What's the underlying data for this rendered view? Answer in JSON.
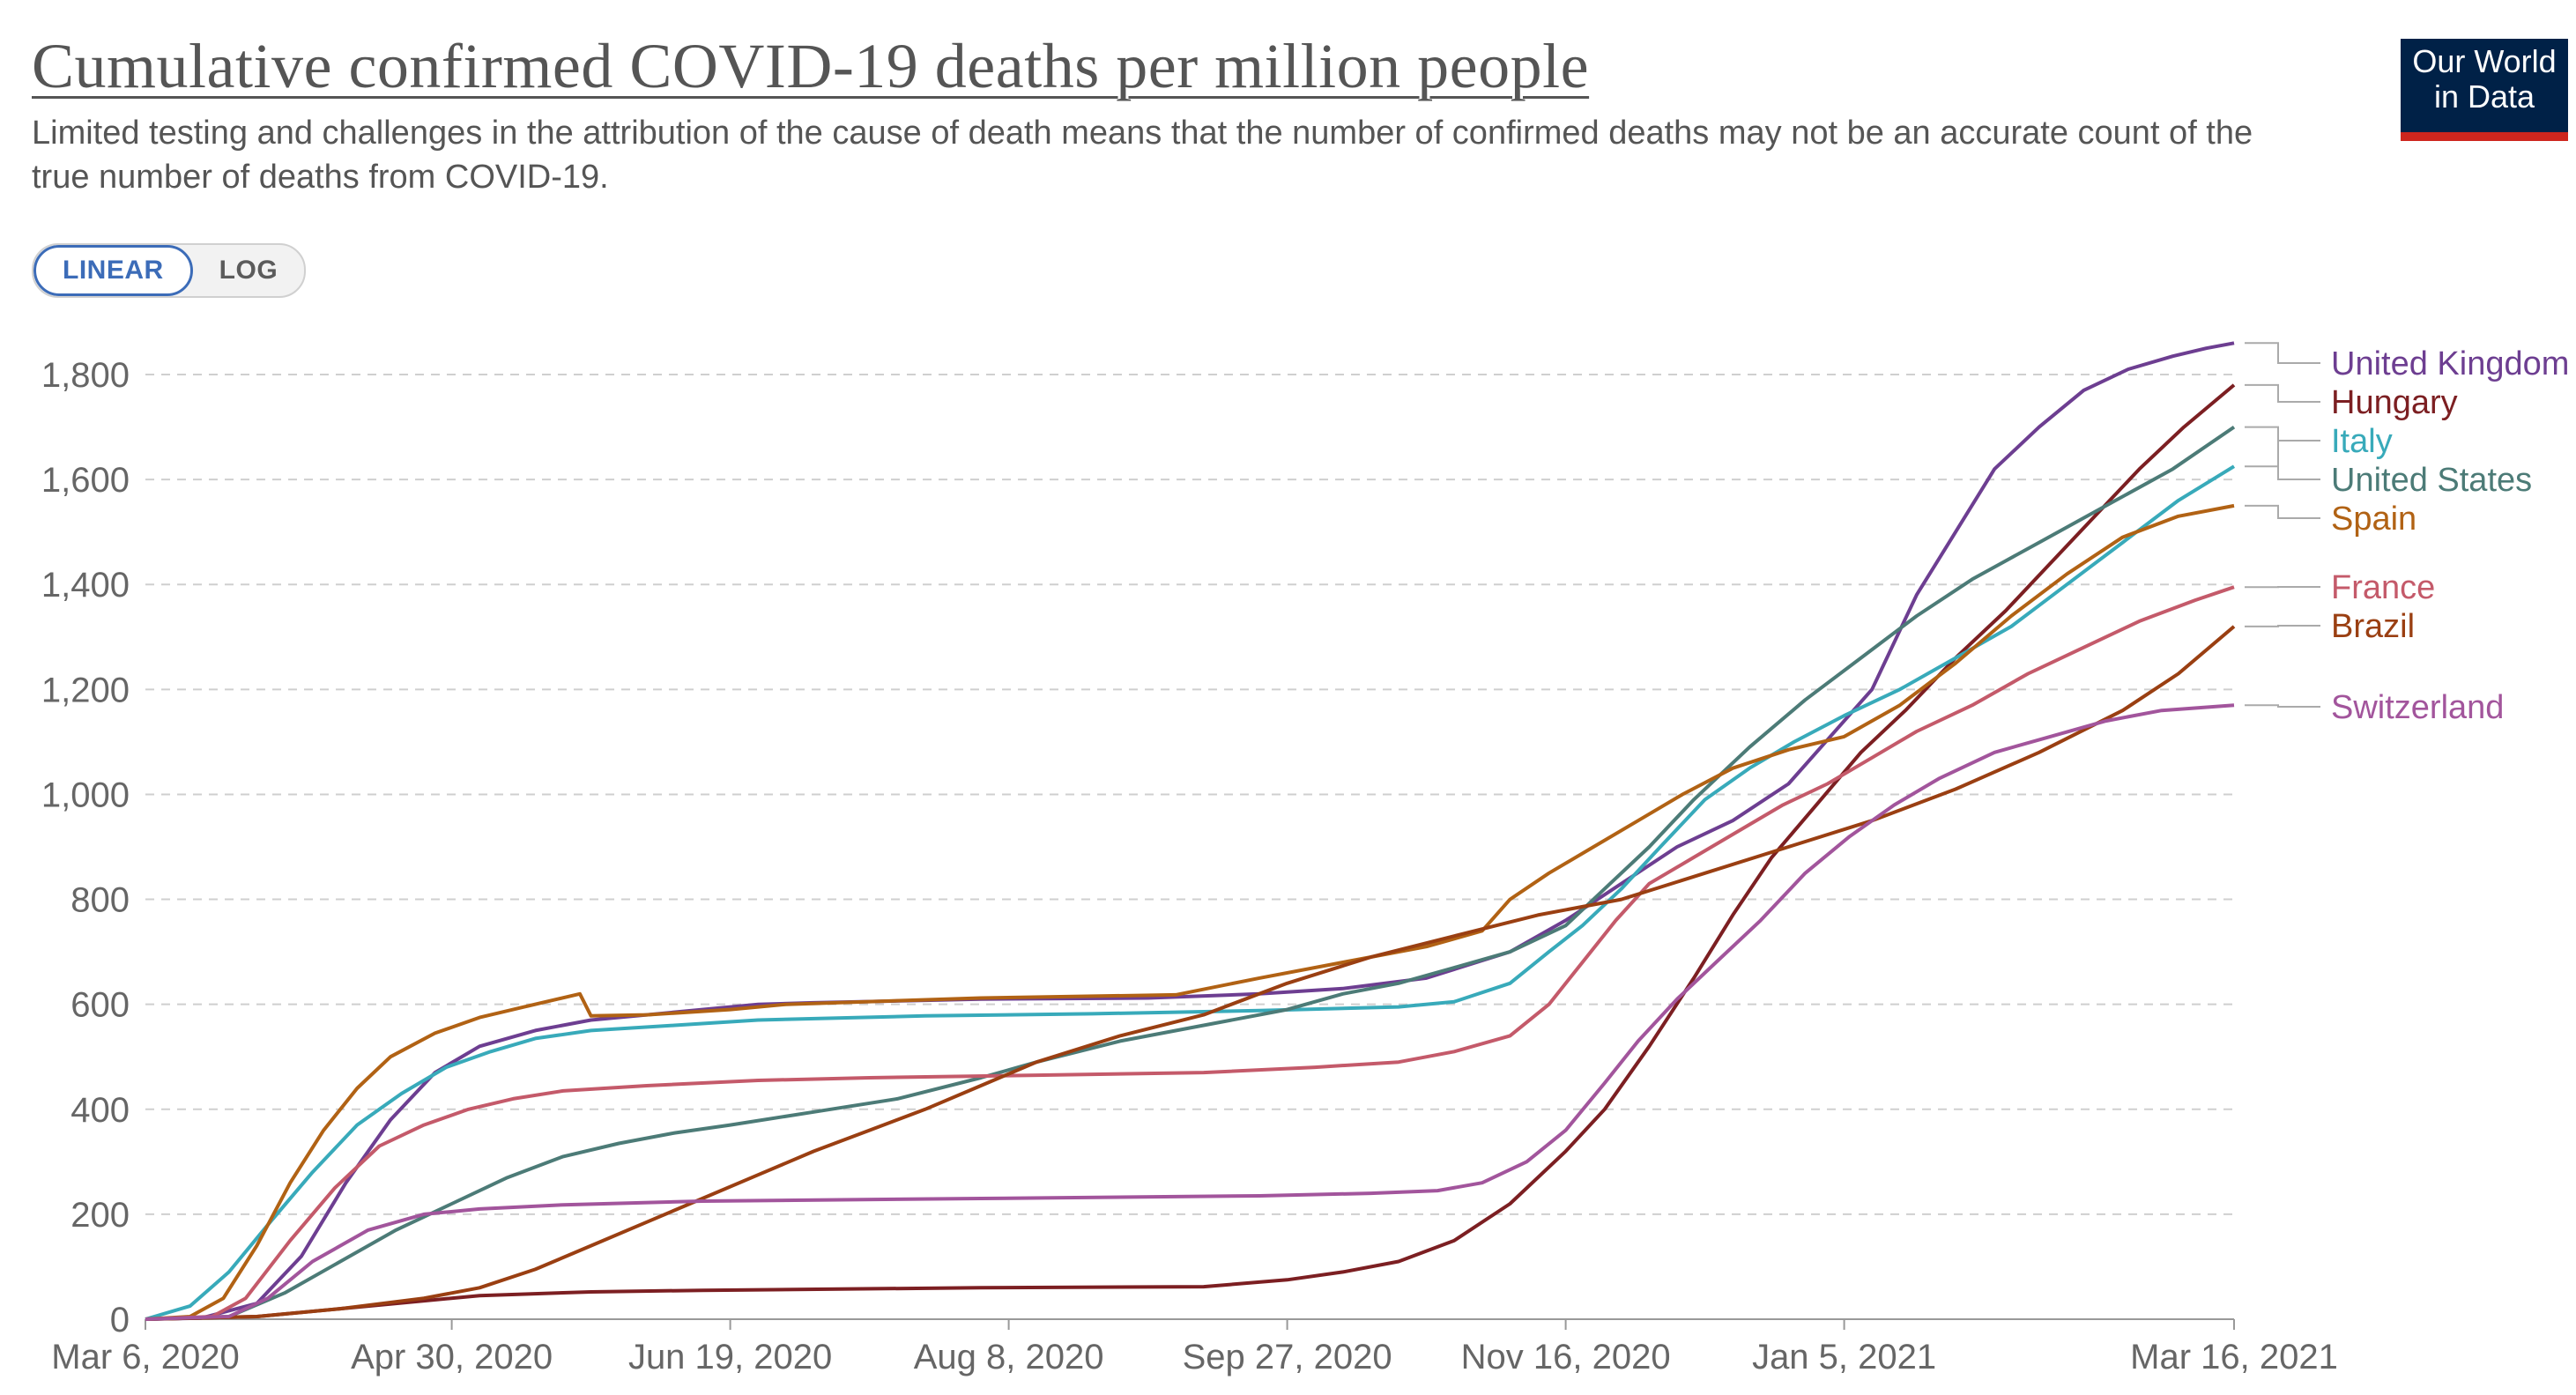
{
  "header": {
    "title": "Cumulative confirmed COVID-19 deaths per million people",
    "subtitle": "Limited testing and challenges in the attribution of the cause of death means that the number of confirmed deaths may not be an accurate count of the true number of deaths from COVID-19."
  },
  "logo": {
    "line1": "Our World",
    "line2": "in Data"
  },
  "scale_toggle": {
    "linear_label": "LINEAR",
    "log_label": "LOG",
    "selected": "LINEAR"
  },
  "chart_data": {
    "type": "line",
    "title": "Cumulative confirmed COVID-19 deaths per million people",
    "xlabel": "",
    "ylabel": "",
    "ylim": [
      0,
      1800
    ],
    "y_ticks": [
      0,
      200,
      400,
      600,
      800,
      1000,
      1200,
      1400,
      1600,
      1800
    ],
    "y_tick_labels": [
      "0",
      "200",
      "400",
      "600",
      "800",
      "1,000",
      "1,200",
      "1,400",
      "1,600",
      "1,800"
    ],
    "x_range_days": [
      0,
      375
    ],
    "x_ticks": [
      {
        "day": 0,
        "label": "Mar 6, 2020"
      },
      {
        "day": 55,
        "label": "Apr 30, 2020"
      },
      {
        "day": 105,
        "label": "Jun 19, 2020"
      },
      {
        "day": 155,
        "label": "Aug 8, 2020"
      },
      {
        "day": 205,
        "label": "Sep 27, 2020"
      },
      {
        "day": 255,
        "label": "Nov 16, 2020"
      },
      {
        "day": 305,
        "label": "Jan 5, 2021"
      },
      {
        "day": 375,
        "label": "Mar 16, 2021"
      }
    ],
    "grid": true,
    "legend": "right end labels",
    "series": [
      {
        "name": "United Kingdom",
        "color": "#6d3e91",
        "points": [
          [
            0,
            0
          ],
          [
            10,
            2
          ],
          [
            20,
            30
          ],
          [
            28,
            120
          ],
          [
            36,
            260
          ],
          [
            44,
            380
          ],
          [
            52,
            470
          ],
          [
            60,
            520
          ],
          [
            70,
            550
          ],
          [
            80,
            570
          ],
          [
            90,
            580
          ],
          [
            100,
            590
          ],
          [
            110,
            600
          ],
          [
            120,
            603
          ],
          [
            150,
            610
          ],
          [
            180,
            612
          ],
          [
            200,
            620
          ],
          [
            215,
            630
          ],
          [
            230,
            650
          ],
          [
            245,
            700
          ],
          [
            255,
            760
          ],
          [
            265,
            830
          ],
          [
            275,
            900
          ],
          [
            285,
            950
          ],
          [
            295,
            1020
          ],
          [
            300,
            1080
          ],
          [
            310,
            1200
          ],
          [
            318,
            1380
          ],
          [
            325,
            1500
          ],
          [
            332,
            1620
          ],
          [
            340,
            1700
          ],
          [
            348,
            1770
          ],
          [
            356,
            1810
          ],
          [
            364,
            1835
          ],
          [
            370,
            1850
          ],
          [
            375,
            1860
          ]
        ]
      },
      {
        "name": "Hungary",
        "color": "#7c1f22",
        "points": [
          [
            0,
            0
          ],
          [
            20,
            5
          ],
          [
            40,
            25
          ],
          [
            60,
            45
          ],
          [
            80,
            52
          ],
          [
            100,
            55
          ],
          [
            150,
            60
          ],
          [
            190,
            62
          ],
          [
            205,
            75
          ],
          [
            215,
            90
          ],
          [
            225,
            110
          ],
          [
            235,
            150
          ],
          [
            245,
            220
          ],
          [
            255,
            320
          ],
          [
            262,
            400
          ],
          [
            270,
            520
          ],
          [
            278,
            650
          ],
          [
            285,
            770
          ],
          [
            292,
            880
          ],
          [
            300,
            980
          ],
          [
            308,
            1080
          ],
          [
            316,
            1160
          ],
          [
            325,
            1260
          ],
          [
            334,
            1350
          ],
          [
            342,
            1440
          ],
          [
            350,
            1530
          ],
          [
            358,
            1620
          ],
          [
            366,
            1700
          ],
          [
            375,
            1780
          ]
        ]
      },
      {
        "name": "Italy",
        "color": "#38aaba",
        "points": [
          [
            0,
            0
          ],
          [
            8,
            25
          ],
          [
            15,
            90
          ],
          [
            22,
            180
          ],
          [
            30,
            280
          ],
          [
            38,
            370
          ],
          [
            46,
            430
          ],
          [
            54,
            480
          ],
          [
            62,
            510
          ],
          [
            70,
            535
          ],
          [
            80,
            550
          ],
          [
            95,
            560
          ],
          [
            110,
            570
          ],
          [
            140,
            578
          ],
          [
            170,
            582
          ],
          [
            200,
            588
          ],
          [
            225,
            595
          ],
          [
            235,
            605
          ],
          [
            245,
            640
          ],
          [
            252,
            700
          ],
          [
            258,
            750
          ],
          [
            265,
            820
          ],
          [
            272,
            900
          ],
          [
            280,
            990
          ],
          [
            288,
            1050
          ],
          [
            296,
            1100
          ],
          [
            305,
            1150
          ],
          [
            315,
            1200
          ],
          [
            325,
            1260
          ],
          [
            335,
            1320
          ],
          [
            345,
            1400
          ],
          [
            355,
            1480
          ],
          [
            365,
            1560
          ],
          [
            375,
            1625
          ]
        ]
      },
      {
        "name": "United States",
        "color": "#4c7b77",
        "points": [
          [
            0,
            0
          ],
          [
            15,
            5
          ],
          [
            25,
            50
          ],
          [
            35,
            110
          ],
          [
            45,
            170
          ],
          [
            55,
            220
          ],
          [
            65,
            270
          ],
          [
            75,
            310
          ],
          [
            85,
            335
          ],
          [
            95,
            355
          ],
          [
            105,
            370
          ],
          [
            120,
            395
          ],
          [
            135,
            420
          ],
          [
            150,
            460
          ],
          [
            160,
            490
          ],
          [
            175,
            530
          ],
          [
            190,
            560
          ],
          [
            205,
            590
          ],
          [
            215,
            620
          ],
          [
            225,
            640
          ],
          [
            235,
            670
          ],
          [
            245,
            700
          ],
          [
            255,
            750
          ],
          [
            262,
            820
          ],
          [
            270,
            900
          ],
          [
            278,
            990
          ],
          [
            288,
            1090
          ],
          [
            298,
            1180
          ],
          [
            308,
            1260
          ],
          [
            318,
            1340
          ],
          [
            328,
            1410
          ],
          [
            340,
            1480
          ],
          [
            352,
            1550
          ],
          [
            364,
            1620
          ],
          [
            375,
            1700
          ]
        ]
      },
      {
        "name": "Spain",
        "color": "#b16214",
        "points": [
          [
            0,
            0
          ],
          [
            8,
            5
          ],
          [
            14,
            40
          ],
          [
            20,
            140
          ],
          [
            26,
            260
          ],
          [
            32,
            360
          ],
          [
            38,
            440
          ],
          [
            44,
            500
          ],
          [
            52,
            545
          ],
          [
            60,
            575
          ],
          [
            68,
            595
          ],
          [
            74,
            610
          ],
          [
            78,
            620
          ],
          [
            80,
            578
          ],
          [
            90,
            580
          ],
          [
            105,
            590
          ],
          [
            115,
            600
          ],
          [
            150,
            612
          ],
          [
            185,
            618
          ],
          [
            200,
            650
          ],
          [
            215,
            680
          ],
          [
            230,
            710
          ],
          [
            240,
            740
          ],
          [
            245,
            800
          ],
          [
            252,
            850
          ],
          [
            260,
            900
          ],
          [
            268,
            950
          ],
          [
            276,
            1000
          ],
          [
            285,
            1050
          ],
          [
            295,
            1085
          ],
          [
            305,
            1110
          ],
          [
            315,
            1170
          ],
          [
            325,
            1250
          ],
          [
            335,
            1340
          ],
          [
            345,
            1420
          ],
          [
            355,
            1490
          ],
          [
            365,
            1530
          ],
          [
            375,
            1550
          ]
        ]
      },
      {
        "name": "France",
        "color": "#c45a6a",
        "points": [
          [
            0,
            0
          ],
          [
            12,
            5
          ],
          [
            18,
            40
          ],
          [
            26,
            150
          ],
          [
            34,
            250
          ],
          [
            42,
            330
          ],
          [
            50,
            370
          ],
          [
            58,
            400
          ],
          [
            66,
            420
          ],
          [
            75,
            435
          ],
          [
            90,
            445
          ],
          [
            110,
            455
          ],
          [
            130,
            460
          ],
          [
            160,
            465
          ],
          [
            190,
            470
          ],
          [
            210,
            480
          ],
          [
            225,
            490
          ],
          [
            235,
            510
          ],
          [
            245,
            540
          ],
          [
            252,
            600
          ],
          [
            258,
            680
          ],
          [
            264,
            760
          ],
          [
            270,
            830
          ],
          [
            278,
            880
          ],
          [
            286,
            930
          ],
          [
            294,
            980
          ],
          [
            302,
            1020
          ],
          [
            310,
            1070
          ],
          [
            318,
            1120
          ],
          [
            328,
            1170
          ],
          [
            338,
            1230
          ],
          [
            348,
            1280
          ],
          [
            358,
            1330
          ],
          [
            368,
            1370
          ],
          [
            375,
            1395
          ]
        ]
      },
      {
        "name": "Brazil",
        "color": "#9a3f12",
        "points": [
          [
            0,
            0
          ],
          [
            20,
            5
          ],
          [
            35,
            20
          ],
          [
            50,
            40
          ],
          [
            60,
            60
          ],
          [
            70,
            95
          ],
          [
            80,
            140
          ],
          [
            90,
            185
          ],
          [
            100,
            230
          ],
          [
            110,
            275
          ],
          [
            120,
            320
          ],
          [
            130,
            360
          ],
          [
            140,
            400
          ],
          [
            150,
            445
          ],
          [
            160,
            490
          ],
          [
            175,
            540
          ],
          [
            190,
            580
          ],
          [
            205,
            640
          ],
          [
            220,
            690
          ],
          [
            235,
            730
          ],
          [
            250,
            770
          ],
          [
            265,
            800
          ],
          [
            280,
            850
          ],
          [
            295,
            900
          ],
          [
            310,
            950
          ],
          [
            325,
            1010
          ],
          [
            340,
            1080
          ],
          [
            355,
            1160
          ],
          [
            365,
            1230
          ],
          [
            375,
            1320
          ]
        ]
      },
      {
        "name": "Switzerland",
        "color": "#a2559c",
        "points": [
          [
            0,
            0
          ],
          [
            15,
            5
          ],
          [
            22,
            40
          ],
          [
            30,
            110
          ],
          [
            40,
            170
          ],
          [
            50,
            200
          ],
          [
            60,
            210
          ],
          [
            75,
            218
          ],
          [
            100,
            225
          ],
          [
            150,
            230
          ],
          [
            200,
            235
          ],
          [
            220,
            240
          ],
          [
            232,
            245
          ],
          [
            240,
            260
          ],
          [
            248,
            300
          ],
          [
            255,
            360
          ],
          [
            262,
            450
          ],
          [
            268,
            530
          ],
          [
            275,
            610
          ],
          [
            282,
            680
          ],
          [
            290,
            760
          ],
          [
            298,
            850
          ],
          [
            306,
            920
          ],
          [
            314,
            980
          ],
          [
            322,
            1030
          ],
          [
            332,
            1080
          ],
          [
            342,
            1110
          ],
          [
            352,
            1140
          ],
          [
            362,
            1160
          ],
          [
            375,
            1170
          ]
        ]
      }
    ]
  }
}
